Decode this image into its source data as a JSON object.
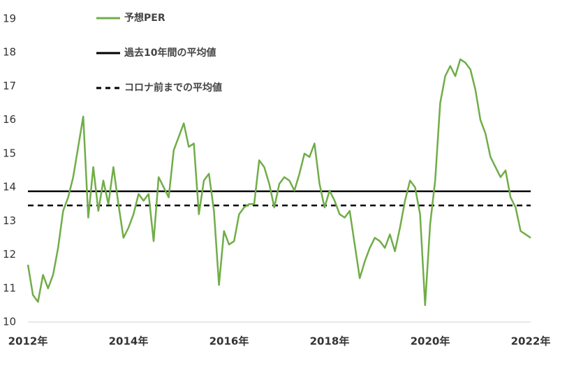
{
  "chart_data": {
    "type": "line",
    "x": [
      2012.0,
      2012.1,
      2012.2,
      2012.3,
      2012.4,
      2012.5,
      2012.6,
      2012.7,
      2012.8,
      2012.9,
      2013.0,
      2013.1,
      2013.2,
      2013.3,
      2013.4,
      2013.5,
      2013.6,
      2013.7,
      2013.8,
      2013.9,
      2014.0,
      2014.1,
      2014.2,
      2014.3,
      2014.4,
      2014.5,
      2014.6,
      2014.7,
      2014.8,
      2014.9,
      2015.0,
      2015.1,
      2015.2,
      2015.3,
      2015.4,
      2015.5,
      2015.6,
      2015.7,
      2015.8,
      2015.9,
      2016.0,
      2016.1,
      2016.2,
      2016.3,
      2016.4,
      2016.5,
      2016.6,
      2016.7,
      2016.8,
      2016.9,
      2017.0,
      2017.1,
      2017.2,
      2017.3,
      2017.4,
      2017.5,
      2017.6,
      2017.7,
      2017.8,
      2017.9,
      2018.0,
      2018.1,
      2018.2,
      2018.3,
      2018.4,
      2018.5,
      2018.6,
      2018.7,
      2018.8,
      2018.9,
      2019.0,
      2019.1,
      2019.2,
      2019.3,
      2019.4,
      2019.5,
      2019.6,
      2019.7,
      2019.8,
      2019.9,
      2020.0,
      2020.1,
      2020.2,
      2020.3,
      2020.4,
      2020.5,
      2020.6,
      2020.7,
      2020.8,
      2020.9,
      2021.0,
      2021.1,
      2021.2,
      2021.3,
      2021.4,
      2021.5,
      2021.6,
      2021.7,
      2021.8,
      2021.9,
      2022.0
    ],
    "series": [
      {
        "name": "予想PER",
        "color": "#70ad47",
        "values": [
          11.7,
          10.8,
          10.6,
          11.4,
          11.0,
          11.4,
          12.2,
          13.3,
          13.7,
          14.3,
          15.2,
          16.1,
          13.1,
          14.6,
          13.3,
          14.2,
          13.5,
          14.6,
          13.5,
          12.5,
          12.8,
          13.2,
          13.8,
          13.6,
          13.8,
          12.4,
          14.3,
          14.0,
          13.7,
          15.1,
          15.5,
          15.9,
          15.2,
          15.3,
          13.2,
          14.2,
          14.4,
          13.3,
          11.1,
          12.7,
          12.3,
          12.4,
          13.2,
          13.4,
          13.5,
          13.5,
          14.8,
          14.6,
          14.1,
          13.4,
          14.1,
          14.3,
          14.2,
          13.9,
          14.4,
          15.0,
          14.9,
          15.3,
          14.1,
          13.4,
          13.9,
          13.6,
          13.2,
          13.1,
          13.3,
          12.3,
          11.3,
          11.8,
          12.2,
          12.5,
          12.4,
          12.2,
          12.6,
          12.1,
          12.8,
          13.6,
          14.2,
          14.0,
          13.2,
          10.5,
          12.9,
          14.2,
          16.5,
          17.3,
          17.6,
          17.3,
          17.8,
          17.7,
          17.5,
          16.9,
          16.0,
          15.6,
          14.9,
          14.6,
          14.3,
          14.5,
          13.7,
          13.4,
          12.7,
          12.6,
          12.5
        ]
      }
    ],
    "reference_lines": [
      {
        "name": "過去10年間の平均値",
        "value": 13.88,
        "style": "solid",
        "color": "#000000"
      },
      {
        "name": "コロナ前までの平均値",
        "value": 13.46,
        "style": "dashed",
        "color": "#000000"
      }
    ],
    "xlim": [
      2012,
      2022
    ],
    "xticks": [
      {
        "value": 2012,
        "label": "2012年"
      },
      {
        "value": 2014,
        "label": "2014年"
      },
      {
        "value": 2016,
        "label": "2016年"
      },
      {
        "value": 2018,
        "label": "2018年"
      },
      {
        "value": 2020,
        "label": "2020年"
      },
      {
        "value": 2022,
        "label": "2022年"
      }
    ],
    "ylim": [
      10,
      19
    ],
    "yticks": [
      10,
      11,
      12,
      13,
      14,
      15,
      16,
      17,
      18,
      19
    ],
    "grid": false
  }
}
